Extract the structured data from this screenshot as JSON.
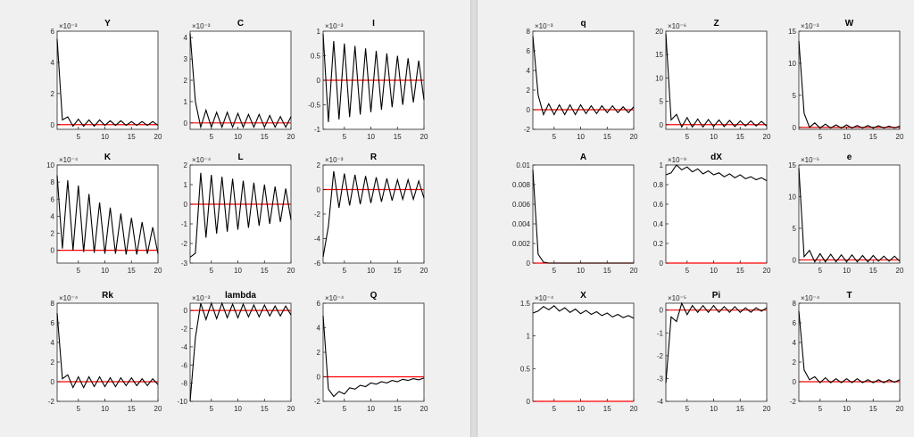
{
  "figures": [
    {
      "name": "figure-left"
    },
    {
      "name": "figure-right"
    }
  ],
  "colors": {
    "series": "#000000",
    "zero_line": "#ff0000",
    "axes_bg": "#ffffff",
    "figure_bg": "#f0f0f0"
  },
  "chart_data": [
    {
      "type": "line",
      "title": "Y",
      "exponent": "×10⁻³",
      "x": [
        1,
        2,
        3,
        4,
        5,
        6,
        7,
        8,
        9,
        10,
        11,
        12,
        13,
        14,
        15,
        16,
        17,
        18,
        19,
        20
      ],
      "series": [
        {
          "values": [
            5.5,
            0.3,
            0.5,
            -0.1,
            0.35,
            -0.1,
            0.3,
            -0.1,
            0.3,
            -0.05,
            0.25,
            -0.05,
            0.25,
            -0.05,
            0.2,
            -0.05,
            0.2,
            -0.05,
            0.2,
            -0.05
          ]
        }
      ],
      "ylim": [
        -0.3,
        6
      ],
      "yticks": [
        0,
        2,
        4,
        6
      ],
      "xlim": [
        1,
        20
      ],
      "xticks": [
        5,
        10,
        15,
        20
      ]
    },
    {
      "type": "line",
      "title": "C",
      "exponent": "×10⁻³",
      "x": [
        1,
        2,
        3,
        4,
        5,
        6,
        7,
        8,
        9,
        10,
        11,
        12,
        13,
        14,
        15,
        16,
        17,
        18,
        19,
        20
      ],
      "series": [
        {
          "values": [
            4.2,
            1.0,
            -0.2,
            0.6,
            -0.2,
            0.5,
            -0.2,
            0.5,
            -0.2,
            0.45,
            -0.2,
            0.4,
            -0.2,
            0.4,
            -0.2,
            0.35,
            -0.2,
            0.3,
            -0.2,
            0.3
          ]
        }
      ],
      "ylim": [
        -0.3,
        4.3
      ],
      "yticks": [
        0,
        1,
        2,
        3,
        4
      ],
      "xlim": [
        1,
        20
      ],
      "xticks": [
        5,
        10,
        15,
        20
      ]
    },
    {
      "type": "line",
      "title": "I",
      "exponent": "×10⁻³",
      "x": [
        1,
        2,
        3,
        4,
        5,
        6,
        7,
        8,
        9,
        10,
        11,
        12,
        13,
        14,
        15,
        16,
        17,
        18,
        19,
        20
      ],
      "series": [
        {
          "values": [
            0.95,
            -0.85,
            0.8,
            -0.8,
            0.75,
            -0.75,
            0.7,
            -0.7,
            0.65,
            -0.65,
            0.6,
            -0.6,
            0.55,
            -0.55,
            0.5,
            -0.5,
            0.45,
            -0.45,
            0.4,
            -0.4
          ]
        }
      ],
      "ylim": [
        -1,
        1
      ],
      "yticks": [
        -1,
        -0.5,
        0,
        0.5,
        1
      ],
      "xlim": [
        1,
        20
      ],
      "xticks": [
        5,
        10,
        15,
        20
      ]
    },
    {
      "type": "line",
      "title": "K",
      "exponent": "×10⁻⁴",
      "x": [
        1,
        2,
        3,
        4,
        5,
        6,
        7,
        8,
        9,
        10,
        11,
        12,
        13,
        14,
        15,
        16,
        17,
        18,
        19,
        20
      ],
      "series": [
        {
          "values": [
            8.8,
            0.2,
            8.2,
            0.0,
            7.6,
            -0.2,
            6.6,
            -0.3,
            5.6,
            -0.4,
            5.0,
            -0.4,
            4.3,
            -0.5,
            3.8,
            -0.5,
            3.3,
            -0.4,
            2.7,
            -0.4
          ]
        }
      ],
      "ylim": [
        -1.5,
        10
      ],
      "yticks": [
        0,
        2,
        4,
        6,
        8,
        10
      ],
      "xlim": [
        1,
        20
      ],
      "xticks": [
        5,
        10,
        15,
        20
      ]
    },
    {
      "type": "line",
      "title": "L",
      "exponent": "×10⁻⁴",
      "x": [
        1,
        2,
        3,
        4,
        5,
        6,
        7,
        8,
        9,
        10,
        11,
        12,
        13,
        14,
        15,
        16,
        17,
        18,
        19,
        20
      ],
      "series": [
        {
          "values": [
            -2.7,
            -2.5,
            1.6,
            -1.7,
            1.5,
            -1.5,
            1.4,
            -1.4,
            1.3,
            -1.3,
            1.2,
            -1.2,
            1.1,
            -1.1,
            1.0,
            -1.0,
            0.9,
            -0.9,
            0.8,
            -0.8
          ]
        }
      ],
      "ylim": [
        -3,
        2
      ],
      "yticks": [
        -3,
        -2,
        -1,
        0,
        1,
        2
      ],
      "xlim": [
        1,
        20
      ],
      "xticks": [
        5,
        10,
        15,
        20
      ]
    },
    {
      "type": "line",
      "title": "R",
      "exponent": "×10⁻³",
      "x": [
        1,
        2,
        3,
        4,
        5,
        6,
        7,
        8,
        9,
        10,
        11,
        12,
        13,
        14,
        15,
        16,
        17,
        18,
        19,
        20
      ],
      "series": [
        {
          "values": [
            -5.5,
            -3.0,
            1.5,
            -1.5,
            1.3,
            -1.3,
            1.2,
            -1.2,
            1.1,
            -1.1,
            1.0,
            -1.0,
            0.9,
            -0.9,
            0.8,
            -0.8,
            0.8,
            -0.8,
            0.7,
            -0.7
          ]
        }
      ],
      "ylim": [
        -6,
        2
      ],
      "yticks": [
        -6,
        -4,
        -2,
        0,
        2
      ],
      "xlim": [
        1,
        20
      ],
      "xticks": [
        5,
        10,
        15,
        20
      ]
    },
    {
      "type": "line",
      "title": "Rk",
      "exponent": "×10⁻⁴",
      "x": [
        1,
        2,
        3,
        4,
        5,
        6,
        7,
        8,
        9,
        10,
        11,
        12,
        13,
        14,
        15,
        16,
        17,
        18,
        19,
        20
      ],
      "series": [
        {
          "values": [
            7.0,
            0.3,
            0.7,
            -0.6,
            0.5,
            -0.6,
            0.5,
            -0.5,
            0.5,
            -0.5,
            0.4,
            -0.5,
            0.4,
            -0.4,
            0.4,
            -0.4,
            0.3,
            -0.4,
            0.3,
            -0.3
          ]
        }
      ],
      "ylim": [
        -2,
        8
      ],
      "yticks": [
        -2,
        0,
        2,
        4,
        6,
        8
      ],
      "xlim": [
        1,
        20
      ],
      "xticks": [
        5,
        10,
        15,
        20
      ]
    },
    {
      "type": "line",
      "title": "lambda",
      "exponent": "×10⁻³",
      "x": [
        1,
        2,
        3,
        4,
        5,
        6,
        7,
        8,
        9,
        10,
        11,
        12,
        13,
        14,
        15,
        16,
        17,
        18,
        19,
        20
      ],
      "series": [
        {
          "values": [
            -10,
            -3.0,
            0.8,
            -1.0,
            0.8,
            -0.9,
            0.8,
            -0.8,
            0.7,
            -0.8,
            0.7,
            -0.7,
            0.6,
            -0.7,
            0.6,
            -0.6,
            0.5,
            -0.6,
            0.5,
            -0.5
          ]
        }
      ],
      "ylim": [
        -10,
        0.8
      ],
      "yticks": [
        -10,
        -8,
        -6,
        -4,
        -2,
        0
      ],
      "xlim": [
        1,
        20
      ],
      "xticks": [
        5,
        10,
        15,
        20
      ]
    },
    {
      "type": "line",
      "title": "Q",
      "exponent": "×10⁻⁴",
      "x": [
        1,
        2,
        3,
        4,
        5,
        6,
        7,
        8,
        9,
        10,
        11,
        12,
        13,
        14,
        15,
        16,
        17,
        18,
        19,
        20
      ],
      "series": [
        {
          "values": [
            5.0,
            -1.0,
            -1.6,
            -1.2,
            -1.4,
            -0.9,
            -1.0,
            -0.7,
            -0.8,
            -0.5,
            -0.6,
            -0.4,
            -0.5,
            -0.3,
            -0.4,
            -0.2,
            -0.3,
            -0.15,
            -0.25,
            -0.1
          ]
        }
      ],
      "ylim": [
        -2,
        6
      ],
      "yticks": [
        -2,
        0,
        2,
        4,
        6
      ],
      "xlim": [
        1,
        20
      ],
      "xticks": [
        5,
        10,
        15,
        20
      ]
    },
    {
      "type": "line",
      "title": "q",
      "exponent": "×10⁻³",
      "x": [
        1,
        2,
        3,
        4,
        5,
        6,
        7,
        8,
        9,
        10,
        11,
        12,
        13,
        14,
        15,
        16,
        17,
        18,
        19,
        20
      ],
      "series": [
        {
          "values": [
            7.5,
            1.5,
            -0.5,
            0.6,
            -0.5,
            0.5,
            -0.5,
            0.5,
            -0.5,
            0.5,
            -0.4,
            0.4,
            -0.4,
            0.4,
            -0.3,
            0.4,
            -0.3,
            0.3,
            -0.3,
            0.3
          ]
        }
      ],
      "ylim": [
        -2,
        8
      ],
      "yticks": [
        -2,
        0,
        2,
        4,
        6,
        8
      ],
      "xlim": [
        1,
        20
      ],
      "xticks": [
        5,
        10,
        15,
        20
      ]
    },
    {
      "type": "line",
      "title": "Z",
      "exponent": "×10⁻⁶",
      "x": [
        1,
        2,
        3,
        4,
        5,
        6,
        7,
        8,
        9,
        10,
        11,
        12,
        13,
        14,
        15,
        16,
        17,
        18,
        19,
        20
      ],
      "series": [
        {
          "values": [
            19.5,
            1.0,
            2.2,
            -0.5,
            1.5,
            -0.5,
            1.2,
            -0.5,
            1.1,
            -0.4,
            1.0,
            -0.4,
            0.9,
            -0.4,
            0.8,
            -0.3,
            0.8,
            -0.3,
            0.7,
            -0.3
          ]
        }
      ],
      "ylim": [
        -1,
        20
      ],
      "yticks": [
        0,
        5,
        10,
        15,
        20
      ],
      "xlim": [
        1,
        20
      ],
      "xticks": [
        5,
        10,
        15,
        20
      ]
    },
    {
      "type": "line",
      "title": "W",
      "exponent": "×10⁻³",
      "x": [
        1,
        2,
        3,
        4,
        5,
        6,
        7,
        8,
        9,
        10,
        11,
        12,
        13,
        14,
        15,
        16,
        17,
        18,
        19,
        20
      ],
      "series": [
        {
          "values": [
            13.5,
            2.2,
            0.0,
            0.7,
            -0.1,
            0.5,
            -0.1,
            0.4,
            -0.1,
            0.4,
            -0.1,
            0.3,
            -0.1,
            0.3,
            -0.1,
            0.25,
            -0.1,
            0.2,
            -0.1,
            0.2
          ]
        }
      ],
      "ylim": [
        -0.3,
        15
      ],
      "yticks": [
        0,
        5,
        10,
        15
      ],
      "xlim": [
        1,
        20
      ],
      "xticks": [
        5,
        10,
        15,
        20
      ]
    },
    {
      "type": "line",
      "title": "A",
      "exponent": "",
      "x": [
        1,
        2,
        3,
        4,
        5,
        6,
        7,
        8,
        9,
        10,
        11,
        12,
        13,
        14,
        15,
        16,
        17,
        18,
        19,
        20
      ],
      "series": [
        {
          "values": [
            0.0095,
            0.0009,
            0.0001,
            0,
            0,
            0,
            0,
            0,
            0,
            0,
            0,
            0,
            0,
            0,
            0,
            0,
            0,
            0,
            0,
            0
          ]
        }
      ],
      "ylim": [
        0,
        0.01
      ],
      "yticks": [
        0,
        0.002,
        0.004,
        0.006,
        0.008,
        0.01
      ],
      "xlim": [
        1,
        20
      ],
      "xticks": [
        5,
        10,
        15,
        20
      ]
    },
    {
      "type": "line",
      "title": "dX",
      "exponent": "×10⁻⁹",
      "x": [
        1,
        2,
        3,
        4,
        5,
        6,
        7,
        8,
        9,
        10,
        11,
        12,
        13,
        14,
        15,
        16,
        17,
        18,
        19,
        20
      ],
      "series": [
        {
          "values": [
            0.9,
            0.92,
            1.0,
            0.95,
            0.98,
            0.93,
            0.96,
            0.91,
            0.94,
            0.9,
            0.92,
            0.88,
            0.91,
            0.87,
            0.9,
            0.86,
            0.88,
            0.85,
            0.87,
            0.84
          ]
        }
      ],
      "ylim": [
        0,
        1
      ],
      "yticks": [
        0,
        0.2,
        0.4,
        0.6,
        0.8,
        1
      ],
      "xlim": [
        1,
        20
      ],
      "xticks": [
        5,
        10,
        15,
        20
      ]
    },
    {
      "type": "line",
      "title": "e",
      "exponent": "×10⁻⁵",
      "x": [
        1,
        2,
        3,
        4,
        5,
        6,
        7,
        8,
        9,
        10,
        11,
        12,
        13,
        14,
        15,
        16,
        17,
        18,
        19,
        20
      ],
      "series": [
        {
          "values": [
            14.5,
            0.5,
            1.5,
            -0.3,
            1.0,
            -0.3,
            0.9,
            -0.3,
            0.8,
            -0.3,
            0.8,
            -0.3,
            0.7,
            -0.3,
            0.7,
            -0.2,
            0.6,
            -0.2,
            0.6,
            -0.2
          ]
        }
      ],
      "ylim": [
        -0.5,
        15
      ],
      "yticks": [
        0,
        5,
        10,
        15
      ],
      "xlim": [
        1,
        20
      ],
      "xticks": [
        5,
        10,
        15,
        20
      ]
    },
    {
      "type": "line",
      "title": "X",
      "exponent": "×10⁻⁴",
      "x": [
        1,
        2,
        3,
        4,
        5,
        6,
        7,
        8,
        9,
        10,
        11,
        12,
        13,
        14,
        15,
        16,
        17,
        18,
        19,
        20
      ],
      "series": [
        {
          "values": [
            1.35,
            1.38,
            1.45,
            1.4,
            1.46,
            1.38,
            1.43,
            1.36,
            1.41,
            1.34,
            1.39,
            1.33,
            1.37,
            1.31,
            1.35,
            1.29,
            1.33,
            1.28,
            1.31,
            1.27
          ]
        }
      ],
      "ylim": [
        0,
        1.5
      ],
      "yticks": [
        0,
        0.5,
        1,
        1.5
      ],
      "xlim": [
        1,
        20
      ],
      "xticks": [
        5,
        10,
        15,
        20
      ]
    },
    {
      "type": "line",
      "title": "Pi",
      "exponent": "×10⁻⁵",
      "x": [
        1,
        2,
        3,
        4,
        5,
        6,
        7,
        8,
        9,
        10,
        11,
        12,
        13,
        14,
        15,
        16,
        17,
        18,
        19,
        20
      ],
      "series": [
        {
          "values": [
            -3.2,
            -0.3,
            -0.5,
            0.3,
            -0.2,
            0.2,
            -0.1,
            0.2,
            -0.1,
            0.2,
            -0.1,
            0.15,
            -0.1,
            0.15,
            -0.1,
            0.1,
            -0.1,
            0.1,
            -0.05,
            0.1
          ]
        }
      ],
      "ylim": [
        -4,
        0.3
      ],
      "yticks": [
        -4,
        -3,
        -2,
        -1,
        0
      ],
      "xlim": [
        1,
        20
      ],
      "xticks": [
        5,
        10,
        15,
        20
      ]
    },
    {
      "type": "line",
      "title": "T",
      "exponent": "×10⁻⁴",
      "x": [
        1,
        2,
        3,
        4,
        5,
        6,
        7,
        8,
        9,
        10,
        11,
        12,
        13,
        14,
        15,
        16,
        17,
        18,
        19,
        20
      ],
      "series": [
        {
          "values": [
            7.2,
            1.2,
            0.2,
            0.5,
            -0.1,
            0.4,
            -0.1,
            0.3,
            -0.1,
            0.3,
            -0.1,
            0.3,
            -0.1,
            0.2,
            -0.1,
            0.2,
            -0.1,
            0.2,
            -0.05,
            0.2
          ]
        }
      ],
      "ylim": [
        -2,
        8
      ],
      "yticks": [
        -2,
        0,
        2,
        4,
        6,
        8
      ],
      "xlim": [
        1,
        20
      ],
      "xticks": [
        5,
        10,
        15,
        20
      ]
    }
  ]
}
